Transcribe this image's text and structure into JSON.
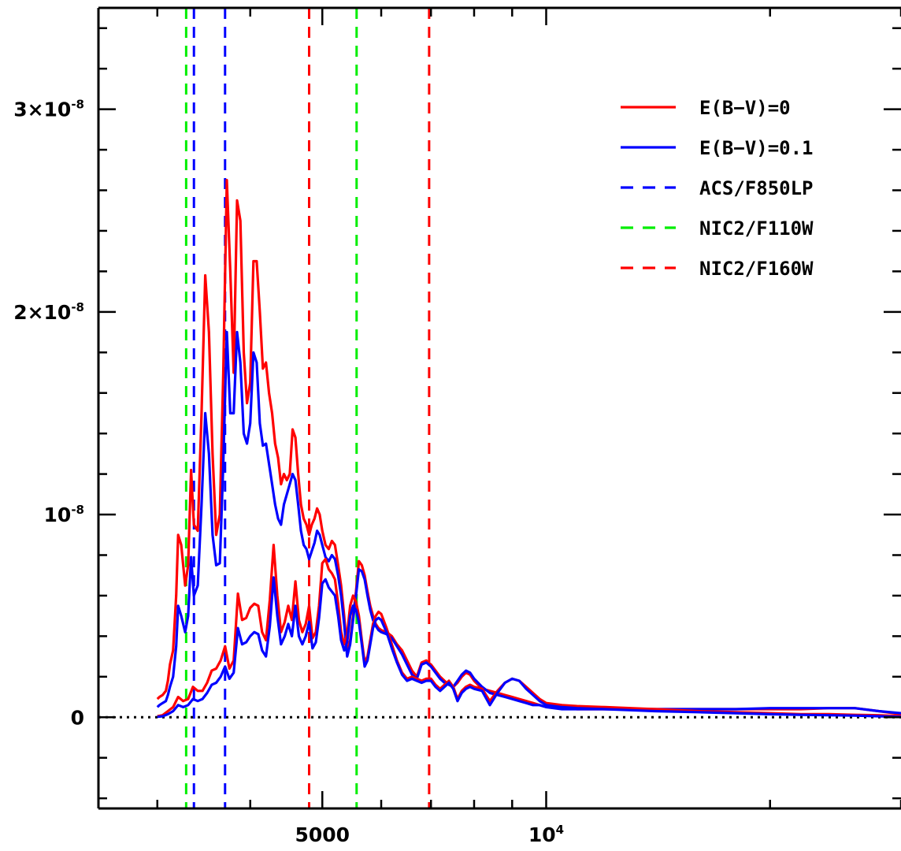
{
  "chart_data": {
    "type": "line",
    "title": "",
    "xlabel": "",
    "ylabel": "",
    "x_scale": "log",
    "xlim": [
      2500,
      30000
    ],
    "ylim": [
      -4.5e-09,
      3.5e-08
    ],
    "grid": false,
    "legend_position": "top-right",
    "zero_line": {
      "y": 0,
      "style": "dotted",
      "color": "#000000"
    },
    "y_ticks": [
      {
        "value": 3e-08,
        "base": "3×10",
        "exp": "-8"
      },
      {
        "value": 2e-08,
        "base": "2×10",
        "exp": "-8"
      },
      {
        "value": 1e-08,
        "base": "10",
        "exp": "-8"
      },
      {
        "value": 0,
        "base": "0",
        "exp": ""
      }
    ],
    "x_ticks": [
      {
        "value": 5000,
        "base": "5000",
        "exp": ""
      },
      {
        "value": 10000,
        "base": "10",
        "exp": "4"
      }
    ],
    "series": [
      {
        "name": "E(B−V)=0",
        "color": "#ff0000",
        "x": [
          3000,
          3020,
          3050,
          3080,
          3100,
          3120,
          3150,
          3180,
          3200,
          3230,
          3270,
          3300,
          3330,
          3360,
          3400,
          3440,
          3480,
          3520,
          3560,
          3600,
          3640,
          3680,
          3720,
          3760,
          3800,
          3840,
          3880,
          3920,
          3960,
          4000,
          4040,
          4080,
          4120,
          4160,
          4200,
          4240,
          4280,
          4320,
          4360,
          4400,
          4440,
          4480,
          4520,
          4560,
          4600,
          4640,
          4680,
          4720,
          4760,
          4800,
          4840,
          4880,
          4920,
          4960,
          5000,
          5050,
          5100,
          5150,
          5200,
          5250,
          5300,
          5350,
          5400,
          5450,
          5500,
          5550,
          5600,
          5650,
          5700,
          5750,
          5800,
          5850,
          5900,
          5950,
          6000,
          6100,
          6200,
          6300,
          6400,
          6500,
          6600,
          6700,
          6800,
          6900,
          7000,
          7100,
          7200,
          7300,
          7400,
          7500,
          7600,
          7700,
          7800,
          7900,
          8000,
          8200,
          8400,
          8600,
          8800,
          9000,
          9200,
          9400,
          9600,
          9800,
          10000,
          10500,
          11000,
          12000,
          13000,
          14000,
          15000,
          16000,
          18000,
          20000,
          22000,
          24000,
          26000,
          28000,
          30000
        ],
        "y": [
          9e-10,
          1e-09,
          1.1e-09,
          1.3e-09,
          1.8e-09,
          2.6e-09,
          3.3e-09,
          6e-09,
          9e-09,
          8.5e-09,
          6.5e-09,
          7.5e-09,
          1.22e-08,
          9.5e-09,
          9.2e-09,
          1.5e-08,
          2.18e-08,
          1.9e-08,
          1.3e-08,
          9e-09,
          1e-08,
          1.7e-08,
          2.65e-08,
          2.2e-08,
          1.7e-08,
          2.55e-08,
          2.45e-08,
          1.8e-08,
          1.55e-08,
          1.65e-08,
          2.25e-08,
          2.25e-08,
          2e-08,
          1.72e-08,
          1.75e-08,
          1.6e-08,
          1.5e-08,
          1.35e-08,
          1.28e-08,
          1.15e-08,
          1.2e-08,
          1.17e-08,
          1.2e-08,
          1.42e-08,
          1.38e-08,
          1.2e-08,
          1.05e-08,
          9.8e-09,
          9.5e-09,
          9e-09,
          9.5e-09,
          9.8e-09,
          1.03e-08,
          1e-08,
          9.2e-09,
          8.5e-09,
          8.3e-09,
          8.7e-09,
          8.5e-09,
          7.5e-09,
          6.5e-09,
          5e-09,
          3.2e-09,
          3.8e-09,
          5e-09,
          6.2e-09,
          7.7e-09,
          7.5e-09,
          7e-09,
          6.2e-09,
          5.5e-09,
          5e-09,
          4.6e-09,
          4.4e-09,
          4.3e-09,
          4.2e-09,
          4e-09,
          3.6e-09,
          3.3e-09,
          2.8e-09,
          2.3e-09,
          2e-09,
          2.7e-09,
          2.8e-09,
          2.6e-09,
          2.3e-09,
          2e-09,
          1.8e-09,
          1.6e-09,
          1.5e-09,
          1.7e-09,
          2e-09,
          2.2e-09,
          2.1e-09,
          1.8e-09,
          1.4e-09,
          1.3e-09,
          1.2e-09,
          1.1e-09,
          1e-09,
          9e-10,
          8e-10,
          7e-10,
          6e-10,
          5e-10,
          5e-10,
          4e-10,
          4e-10,
          4e-10,
          4e-10,
          4e-10,
          4e-10,
          4e-10,
          4e-10,
          4e-10,
          4.5e-10,
          4.5e-10,
          3e-10,
          1.5e-10
        ]
      },
      {
        "name": "E(B−V)=0.1",
        "color": "#0000ff",
        "x": [
          3000,
          3020,
          3050,
          3080,
          3100,
          3120,
          3150,
          3180,
          3200,
          3230,
          3270,
          3300,
          3330,
          3360,
          3400,
          3440,
          3480,
          3520,
          3560,
          3600,
          3640,
          3680,
          3720,
          3760,
          3800,
          3840,
          3880,
          3920,
          3960,
          4000,
          4040,
          4080,
          4120,
          4160,
          4200,
          4240,
          4280,
          4320,
          4360,
          4400,
          4440,
          4480,
          4520,
          4560,
          4600,
          4640,
          4680,
          4720,
          4760,
          4800,
          4840,
          4880,
          4920,
          4960,
          5000,
          5050,
          5100,
          5150,
          5200,
          5250,
          5300,
          5350,
          5400,
          5450,
          5500,
          5550,
          5600,
          5650,
          5700,
          5750,
          5800,
          5850,
          5900,
          5950,
          6000,
          6100,
          6200,
          6300,
          6400,
          6500,
          6600,
          6700,
          6800,
          6900,
          7000,
          7100,
          7200,
          7300,
          7400,
          7500,
          7600,
          7700,
          7800,
          7900,
          8000,
          8200,
          8400,
          8600,
          8800,
          9000,
          9200,
          9400,
          9600,
          9800,
          10000,
          10500,
          11000,
          12000,
          13000,
          14000,
          15000,
          16000,
          18000,
          20000,
          22000,
          24000,
          26000,
          28000,
          30000
        ],
        "y": [
          5e-10,
          6e-10,
          7e-10,
          8e-10,
          1.1e-09,
          1.5e-09,
          2e-09,
          3.5e-09,
          5.5e-09,
          5e-09,
          4.2e-09,
          5e-09,
          7.9e-09,
          6e-09,
          6.5e-09,
          1.05e-08,
          1.5e-08,
          1.3e-08,
          9e-09,
          7.5e-09,
          7.6e-09,
          1.25e-08,
          1.9e-08,
          1.5e-08,
          1.5e-08,
          1.9e-08,
          1.75e-08,
          1.4e-08,
          1.35e-08,
          1.45e-08,
          1.8e-08,
          1.75e-08,
          1.45e-08,
          1.34e-08,
          1.35e-08,
          1.25e-08,
          1.15e-08,
          1.05e-08,
          9.8e-09,
          9.5e-09,
          1.05e-08,
          1.1e-08,
          1.15e-08,
          1.2e-08,
          1.17e-08,
          1.05e-08,
          9.2e-09,
          8.5e-09,
          8.3e-09,
          7.8e-09,
          8.2e-09,
          8.6e-09,
          9.2e-09,
          9e-09,
          8.5e-09,
          7.9e-09,
          7.7e-09,
          8e-09,
          7.8e-09,
          7e-09,
          6e-09,
          4.6e-09,
          3e-09,
          3.6e-09,
          4.8e-09,
          6e-09,
          7.3e-09,
          7.2e-09,
          6.8e-09,
          6e-09,
          5.3e-09,
          4.8e-09,
          4.5e-09,
          4.3e-09,
          4.2e-09,
          4.1e-09,
          3.9e-09,
          3.5e-09,
          3.1e-09,
          2.6e-09,
          2.1e-09,
          1.9e-09,
          2.6e-09,
          2.7e-09,
          2.5e-09,
          2.2e-09,
          1.9e-09,
          1.7e-09,
          1.6e-09,
          1.5e-09,
          1.8e-09,
          2.1e-09,
          2.3e-09,
          2.2e-09,
          1.9e-09,
          1.5e-09,
          1.2e-09,
          1.1e-09,
          1e-09,
          9e-10,
          8e-10,
          7e-10,
          6e-10,
          6e-10,
          5e-10,
          4e-10,
          4e-10,
          4e-10,
          4e-10,
          4e-10,
          4e-10,
          4e-10,
          4e-10,
          4.5e-10,
          4.5e-10,
          4.5e-10,
          4.5e-10,
          3e-10,
          2e-10
        ]
      },
      {
        "name": "",
        "color": "#ff0000",
        "x": [
          3000,
          3050,
          3100,
          3150,
          3200,
          3250,
          3300,
          3350,
          3400,
          3450,
          3500,
          3550,
          3600,
          3650,
          3700,
          3750,
          3800,
          3850,
          3900,
          3950,
          4000,
          4050,
          4100,
          4150,
          4200,
          4250,
          4300,
          4350,
          4400,
          4450,
          4500,
          4550,
          4600,
          4650,
          4700,
          4750,
          4800,
          4850,
          4900,
          4950,
          5000,
          5050,
          5100,
          5150,
          5200,
          5250,
          5300,
          5350,
          5400,
          5450,
          5500,
          5550,
          5600,
          5650,
          5700,
          5750,
          5800,
          5850,
          5900,
          5950,
          6000,
          6100,
          6200,
          6300,
          6400,
          6500,
          6600,
          6700,
          6800,
          6900,
          7000,
          7100,
          7200,
          7300,
          7400,
          7500,
          7600,
          7700,
          7800,
          7900,
          8000,
          8200,
          8400,
          8600,
          8800,
          9000,
          9200,
          9400,
          9600,
          9800,
          10000,
          10500,
          11000,
          12000,
          13000,
          14000,
          16000,
          18000,
          20000,
          22000,
          24000,
          26000,
          28000,
          30000
        ],
        "y": [
          5e-11,
          1e-10,
          3e-10,
          5e-10,
          1e-09,
          8e-10,
          9e-10,
          1.5e-09,
          1.3e-09,
          1.3e-09,
          1.7e-09,
          2.3e-09,
          2.4e-09,
          2.8e-09,
          3.5e-09,
          2.4e-09,
          2.8e-09,
          6.1e-09,
          4.8e-09,
          4.9e-09,
          5.4e-09,
          5.6e-09,
          5.5e-09,
          4.2e-09,
          3.8e-09,
          5.8e-09,
          8.5e-09,
          6e-09,
          4.2e-09,
          4.7e-09,
          5.5e-09,
          4.8e-09,
          6.7e-09,
          4.8e-09,
          4.2e-09,
          4.6e-09,
          5.5e-09,
          3.9e-09,
          4.2e-09,
          5.5e-09,
          7.6e-09,
          7.8e-09,
          7.3e-09,
          7.1e-09,
          6.8e-09,
          5.6e-09,
          4.2e-09,
          3.6e-09,
          4.1e-09,
          5.5e-09,
          6e-09,
          5.7e-09,
          5e-09,
          3.8e-09,
          2.7e-09,
          3e-09,
          3.8e-09,
          4.6e-09,
          5e-09,
          5.2e-09,
          5.1e-09,
          4.4e-09,
          3.6e-09,
          2.8e-09,
          2.2e-09,
          1.9e-09,
          2e-09,
          1.9e-09,
          1.8e-09,
          1.9e-09,
          1.9e-09,
          1.6e-09,
          1.4e-09,
          1.6e-09,
          1.8e-09,
          1.5e-09,
          9e-10,
          1.3e-09,
          1.5e-09,
          1.6e-09,
          1.5e-09,
          1.4e-09,
          8e-10,
          1.3e-09,
          1.7e-09,
          1.9e-09,
          1.8e-09,
          1.5e-09,
          1.2e-09,
          9e-10,
          7e-10,
          6e-10,
          5.5e-10,
          5e-10,
          4.5e-10,
          4e-10,
          3e-10,
          2.5e-10,
          2e-10,
          1.5e-10,
          1.5e-10,
          1.2e-10,
          1e-10,
          5e-11
        ]
      },
      {
        "name": "",
        "color": "#0000ff",
        "x": [
          3000,
          3050,
          3100,
          3150,
          3200,
          3250,
          3300,
          3350,
          3400,
          3450,
          3500,
          3550,
          3600,
          3650,
          3700,
          3750,
          3800,
          3850,
          3900,
          3950,
          4000,
          4050,
          4100,
          4150,
          4200,
          4250,
          4300,
          4350,
          4400,
          4450,
          4500,
          4550,
          4600,
          4650,
          4700,
          4750,
          4800,
          4850,
          4900,
          4950,
          5000,
          5050,
          5100,
          5150,
          5200,
          5250,
          5300,
          5350,
          5400,
          5450,
          5500,
          5550,
          5600,
          5650,
          5700,
          5750,
          5800,
          5850,
          5900,
          5950,
          6000,
          6100,
          6200,
          6300,
          6400,
          6500,
          6600,
          6700,
          6800,
          6900,
          7000,
          7100,
          7200,
          7300,
          7400,
          7500,
          7600,
          7700,
          7800,
          7900,
          8000,
          8200,
          8400,
          8600,
          8800,
          9000,
          9200,
          9400,
          9600,
          9800,
          10000,
          10500,
          11000,
          12000,
          13000,
          14000,
          16000,
          18000,
          20000,
          22000,
          24000,
          26000,
          28000,
          30000
        ],
        "y": [
          2e-11,
          5e-11,
          1.5e-10,
          3e-10,
          6e-10,
          5e-10,
          6e-10,
          9e-10,
          8e-10,
          9e-10,
          1.2e-09,
          1.6e-09,
          1.7e-09,
          2e-09,
          2.5e-09,
          1.9e-09,
          2.2e-09,
          4.4e-09,
          3.6e-09,
          3.7e-09,
          4e-09,
          4.2e-09,
          4.1e-09,
          3.3e-09,
          3e-09,
          4.5e-09,
          6.9e-09,
          5e-09,
          3.6e-09,
          4e-09,
          4.6e-09,
          4e-09,
          5.5e-09,
          4e-09,
          3.6e-09,
          4e-09,
          4.7e-09,
          3.4e-09,
          3.7e-09,
          4.9e-09,
          6.6e-09,
          6.8e-09,
          6.4e-09,
          6.2e-09,
          6e-09,
          5e-09,
          3.8e-09,
          3.3e-09,
          3.7e-09,
          5e-09,
          5.5e-09,
          5.3e-09,
          4.7e-09,
          3.6e-09,
          2.5e-09,
          2.8e-09,
          3.6e-09,
          4.4e-09,
          4.8e-09,
          4.9e-09,
          4.8e-09,
          4.2e-09,
          3.4e-09,
          2.7e-09,
          2.1e-09,
          1.8e-09,
          1.9e-09,
          1.8e-09,
          1.7e-09,
          1.8e-09,
          1.8e-09,
          1.5e-09,
          1.3e-09,
          1.5e-09,
          1.7e-09,
          1.4e-09,
          8e-10,
          1.2e-09,
          1.4e-09,
          1.5e-09,
          1.4e-09,
          1.3e-09,
          6e-10,
          1.2e-09,
          1.7e-09,
          1.9e-09,
          1.8e-09,
          1.4e-09,
          1.1e-09,
          8e-10,
          6e-10,
          5e-10,
          4.5e-10,
          4e-10,
          3.5e-10,
          3e-10,
          2.5e-10,
          2e-10,
          1.5e-10,
          1.2e-10,
          1e-10,
          8e-11,
          5e-11,
          2e-11
        ]
      }
    ],
    "vertical_markers": [
      {
        "x": 3280,
        "color": "#00ee00",
        "filter": "NIC2/F110W"
      },
      {
        "x": 3360,
        "color": "#0000ff",
        "filter": "ACS/F850LP"
      },
      {
        "x": 3700,
        "color": "#0000ff",
        "filter": "ACS/F850LP"
      },
      {
        "x": 4800,
        "color": "#ff0000",
        "filter": "NIC2/F160W"
      },
      {
        "x": 5560,
        "color": "#00ee00",
        "filter": "NIC2/F110W"
      },
      {
        "x": 6960,
        "color": "#ff0000",
        "filter": "NIC2/F160W"
      }
    ],
    "legend": [
      {
        "label": "E(B−V)=0",
        "color": "#ff0000",
        "dash": "solid"
      },
      {
        "label": "E(B−V)=0.1",
        "color": "#0000ff",
        "dash": "solid"
      },
      {
        "label": "ACS/F850LP",
        "color": "#0000ff",
        "dash": "dashed"
      },
      {
        "label": "NIC2/F110W",
        "color": "#00ee00",
        "dash": "dashed"
      },
      {
        "label": "NIC2/F160W",
        "color": "#ff0000",
        "dash": "dashed"
      }
    ]
  }
}
